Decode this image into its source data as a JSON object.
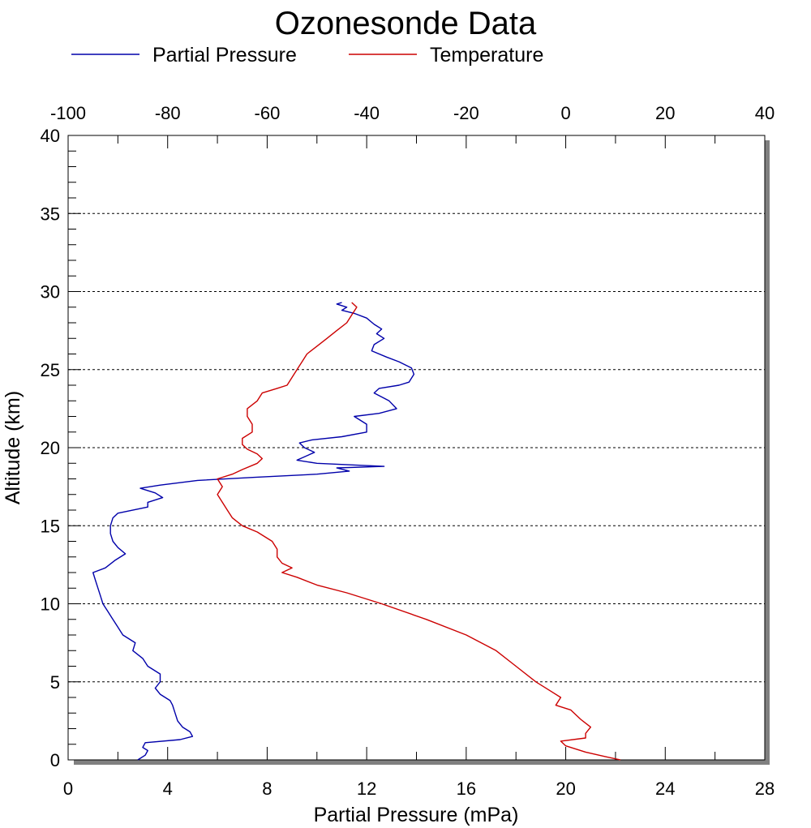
{
  "chart_data": {
    "type": "line",
    "title": "Ozonesonde Data",
    "xlabel": "Partial Pressure (mPa)",
    "ylabel": "Altitude (km)",
    "xlim": [
      0,
      28
    ],
    "x_top_lim": [
      -100,
      40
    ],
    "ylim": [
      0,
      40
    ],
    "x_ticks": [
      "0",
      "4",
      "8",
      "12",
      "16",
      "20",
      "24",
      "28"
    ],
    "x_top_ticks": [
      "-100",
      "-80",
      "-60",
      "-40",
      "-20",
      "0",
      "20",
      "40"
    ],
    "y_ticks": [
      "0",
      "5",
      "10",
      "15",
      "20",
      "25",
      "30",
      "35",
      "40"
    ],
    "grid": "horizontal dashed",
    "legend_position": "top",
    "series": [
      {
        "name": "Partial Pressure",
        "color": "#0000aa",
        "axis": "bottom",
        "points": [
          [
            2.8,
            0
          ],
          [
            3.1,
            0.3
          ],
          [
            3.2,
            0.6
          ],
          [
            3.0,
            0.8
          ],
          [
            3.1,
            1.1
          ],
          [
            4.5,
            1.3
          ],
          [
            5.0,
            1.5
          ],
          [
            4.9,
            1.8
          ],
          [
            4.6,
            2.1
          ],
          [
            4.4,
            2.5
          ],
          [
            4.3,
            3.0
          ],
          [
            4.2,
            3.5
          ],
          [
            4.1,
            3.8
          ],
          [
            3.7,
            4.2
          ],
          [
            3.5,
            4.6
          ],
          [
            3.7,
            5.0
          ],
          [
            3.7,
            5.5
          ],
          [
            3.2,
            6.0
          ],
          [
            3.0,
            6.5
          ],
          [
            2.6,
            7.0
          ],
          [
            2.7,
            7.5
          ],
          [
            2.2,
            8.0
          ],
          [
            2.0,
            8.5
          ],
          [
            1.8,
            9.0
          ],
          [
            1.6,
            9.5
          ],
          [
            1.4,
            10.0
          ],
          [
            1.3,
            10.5
          ],
          [
            1.2,
            11.0
          ],
          [
            1.1,
            11.5
          ],
          [
            1.0,
            12.0
          ],
          [
            1.5,
            12.3
          ],
          [
            1.9,
            12.8
          ],
          [
            2.3,
            13.2
          ],
          [
            2.0,
            13.6
          ],
          [
            1.8,
            14.0
          ],
          [
            1.7,
            14.5
          ],
          [
            1.7,
            15.0
          ],
          [
            1.8,
            15.5
          ],
          [
            2.0,
            15.8
          ],
          [
            3.2,
            16.2
          ],
          [
            3.2,
            16.5
          ],
          [
            3.8,
            16.8
          ],
          [
            3.5,
            17.1
          ],
          [
            2.9,
            17.4
          ],
          [
            3.7,
            17.6
          ],
          [
            5.2,
            17.9
          ],
          [
            7.5,
            18.1
          ],
          [
            10.0,
            18.3
          ],
          [
            11.3,
            18.5
          ],
          [
            10.8,
            18.7
          ],
          [
            12.7,
            18.8
          ],
          [
            10.0,
            19.0
          ],
          [
            9.2,
            19.2
          ],
          [
            9.9,
            19.7
          ],
          [
            9.5,
            20.0
          ],
          [
            9.3,
            20.3
          ],
          [
            9.8,
            20.5
          ],
          [
            11.0,
            20.7
          ],
          [
            12.0,
            21.0
          ],
          [
            12.0,
            21.5
          ],
          [
            11.5,
            22.0
          ],
          [
            12.5,
            22.2
          ],
          [
            13.2,
            22.5
          ],
          [
            12.9,
            23.0
          ],
          [
            12.3,
            23.5
          ],
          [
            12.5,
            23.8
          ],
          [
            13.3,
            24.0
          ],
          [
            13.7,
            24.2
          ],
          [
            13.9,
            24.7
          ],
          [
            13.8,
            25.1
          ],
          [
            13.3,
            25.5
          ],
          [
            12.8,
            25.8
          ],
          [
            12.2,
            26.2
          ],
          [
            12.3,
            26.6
          ],
          [
            12.7,
            27.0
          ],
          [
            12.4,
            27.3
          ],
          [
            12.6,
            27.6
          ],
          [
            12.3,
            27.9
          ],
          [
            12.0,
            28.3
          ],
          [
            11.5,
            28.6
          ],
          [
            11.0,
            28.8
          ],
          [
            11.2,
            29.0
          ],
          [
            10.8,
            29.2
          ],
          [
            11.0,
            29.3
          ]
        ]
      },
      {
        "name": "Temperature",
        "color": "#cc0000",
        "axis": "top",
        "points": [
          [
            11,
            0
          ],
          [
            8,
            0.2
          ],
          [
            4,
            0.5
          ],
          [
            0,
            0.9
          ],
          [
            -1,
            1.2
          ],
          [
            4,
            1.4
          ],
          [
            4,
            1.7
          ],
          [
            5,
            2.1
          ],
          [
            3,
            2.6
          ],
          [
            1,
            3.2
          ],
          [
            -2,
            3.5
          ],
          [
            -1,
            4.0
          ],
          [
            -3,
            4.4
          ],
          [
            -6,
            5.0
          ],
          [
            -10,
            6.0
          ],
          [
            -14,
            7.0
          ],
          [
            -20,
            8.0
          ],
          [
            -28,
            9.0
          ],
          [
            -37,
            10.0
          ],
          [
            -44,
            10.7
          ],
          [
            -50,
            11.2
          ],
          [
            -54,
            11.7
          ],
          [
            -57,
            12.0
          ],
          [
            -55,
            12.3
          ],
          [
            -57,
            12.6
          ],
          [
            -58,
            13.0
          ],
          [
            -58,
            13.5
          ],
          [
            -59,
            14.0
          ],
          [
            -62,
            14.6
          ],
          [
            -65,
            15.0
          ],
          [
            -67,
            15.5
          ],
          [
            -68,
            16.0
          ],
          [
            -69,
            16.5
          ],
          [
            -70,
            17.0
          ],
          [
            -69,
            17.5
          ],
          [
            -70,
            18.0
          ],
          [
            -67,
            18.3
          ],
          [
            -65,
            18.6
          ],
          [
            -62,
            19.0
          ],
          [
            -61,
            19.3
          ],
          [
            -62,
            19.6
          ],
          [
            -64,
            19.9
          ],
          [
            -65,
            20.2
          ],
          [
            -65,
            20.6
          ],
          [
            -63,
            21.0
          ],
          [
            -63,
            21.5
          ],
          [
            -64,
            22.0
          ],
          [
            -64,
            22.5
          ],
          [
            -62,
            23.0
          ],
          [
            -61,
            23.5
          ],
          [
            -58,
            23.8
          ],
          [
            -56,
            24.0
          ],
          [
            -55,
            24.5
          ],
          [
            -54,
            25.0
          ],
          [
            -53,
            25.5
          ],
          [
            -52,
            26.0
          ],
          [
            -50,
            26.5
          ],
          [
            -48,
            27.0
          ],
          [
            -46,
            27.5
          ],
          [
            -44,
            28.0
          ],
          [
            -43,
            28.5
          ],
          [
            -42,
            29.0
          ],
          [
            -43,
            29.3
          ]
        ]
      }
    ]
  }
}
